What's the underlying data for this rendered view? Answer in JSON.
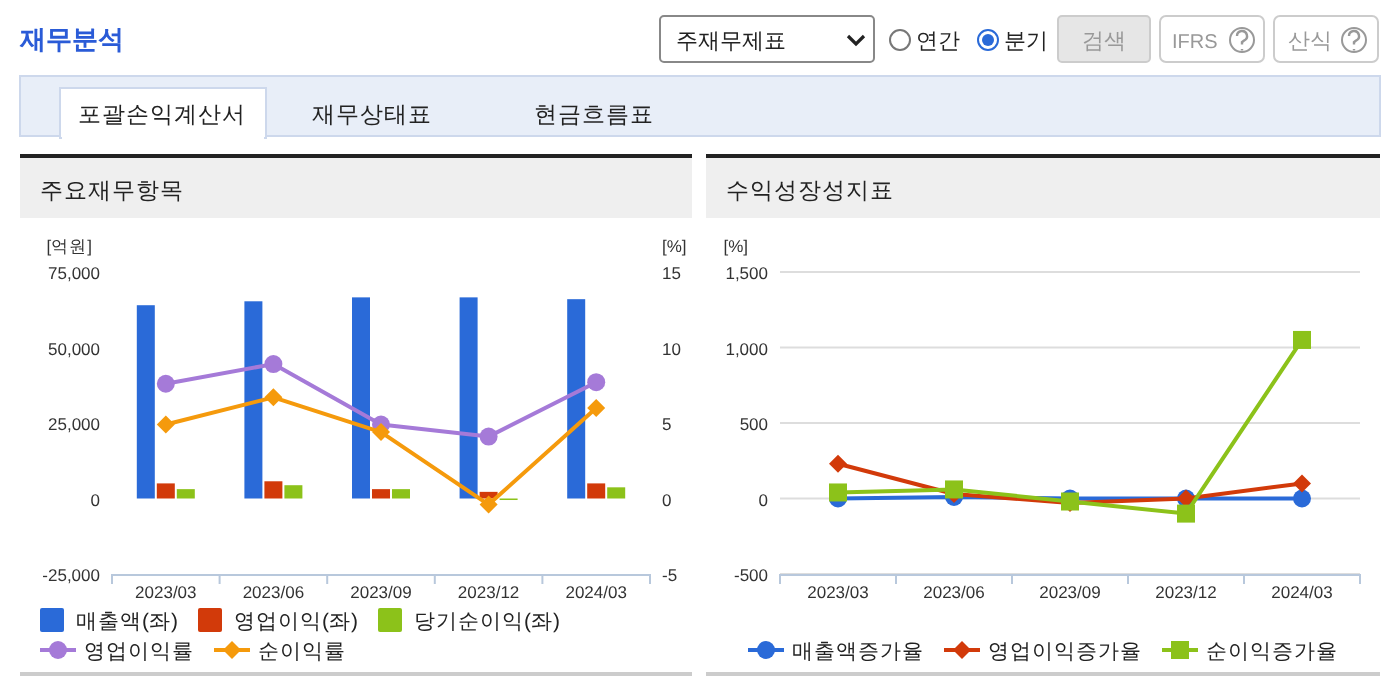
{
  "chart_data": [
    {
      "type": "other",
      "title": "재무분석",
      "annotations": [
        "주재무제표",
        "연간",
        "분기",
        "검색",
        "IFRS",
        "산식",
        "포괄손익계산서",
        "재무상태표",
        "현금흐름표"
      ]
    },
    {
      "type": "bar",
      "title": "주요재무항목",
      "ylabel": "[억원]",
      "y2label": "[%]",
      "categories": [
        "2023/03",
        "2023/06",
        "2023/09",
        "2023/12",
        "2024/03"
      ],
      "ylim": [
        -25000,
        75000
      ],
      "yticks": [
        {
          "value": -25000,
          "label": "-25,000"
        },
        {
          "value": 0,
          "label": "0"
        },
        {
          "value": 25000,
          "label": "25,000"
        },
        {
          "value": 50000,
          "label": "50,000"
        },
        {
          "value": 75000,
          "label": "75,000"
        }
      ],
      "y2lim": [
        -5,
        15
      ],
      "y2ticks": [
        -5,
        0,
        5,
        10,
        15
      ],
      "grid": false,
      "legend": "bottom",
      "series": [
        {
          "name": "매출액(좌)",
          "type": "bar",
          "color": "#2a6ad8",
          "values": [
            64000,
            65300,
            66600,
            66600,
            66000
          ]
        },
        {
          "name": "영업이익(좌)",
          "type": "bar",
          "color": "#d23a0a",
          "values": [
            5000,
            5700,
            3100,
            2200,
            5000
          ]
        },
        {
          "name": "당기순이익(좌)",
          "type": "bar",
          "color": "#8cc21a",
          "values": [
            3100,
            4400,
            3100,
            -500,
            3700
          ]
        },
        {
          "name": "영업이익률",
          "type": "line",
          "axis": "y2",
          "marker": "circle",
          "color": "#a57ad8",
          "values": [
            7.6,
            8.9,
            4.9,
            4.1,
            7.7
          ]
        },
        {
          "name": "순이익률",
          "type": "line",
          "axis": "y2",
          "marker": "diamond",
          "color": "#f59a0c",
          "values": [
            4.9,
            6.7,
            4.4,
            -0.4,
            6.0
          ]
        }
      ]
    },
    {
      "type": "line",
      "title": "수익성장성지표",
      "ylabel": "[%]",
      "categories": [
        "2023/03",
        "2023/06",
        "2023/09",
        "2023/12",
        "2024/03"
      ],
      "ylim": [
        -500,
        1500
      ],
      "yticks": [
        -500,
        0,
        500,
        {
          "value": 1000,
          "label": "1,000"
        },
        {
          "value": 1500,
          "label": "1,500"
        }
      ],
      "grid": "y",
      "legend": "bottom",
      "series": [
        {
          "name": "매출액증가율",
          "marker": "circle",
          "color": "#2a6ad8",
          "values": [
            0,
            10,
            0,
            0,
            0
          ]
        },
        {
          "name": "영업이익증가율",
          "marker": "diamond",
          "color": "#d23a0a",
          "values": [
            230,
            30,
            -30,
            0,
            100
          ]
        },
        {
          "name": "순이익증가율",
          "marker": "square",
          "color": "#8cc21a",
          "values": [
            40,
            60,
            -20,
            -100,
            1050
          ]
        }
      ]
    }
  ]
}
